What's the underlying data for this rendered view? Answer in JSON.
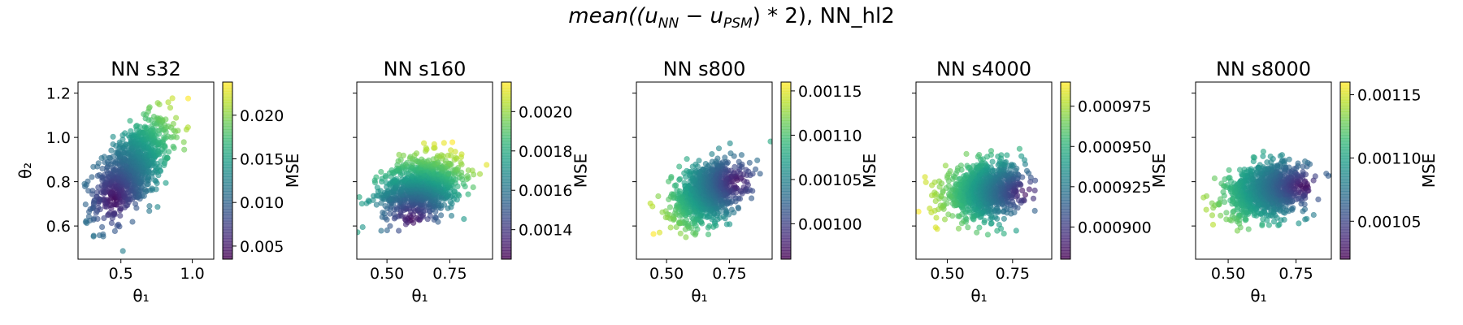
{
  "figure": {
    "suptitle_prefix": "mean((u",
    "sub_nn": "NN",
    "minus": " − u",
    "sub_psm": "PSM",
    "suptitle_suffix": ") * 2), NN_hl2"
  },
  "chart_data": [
    {
      "type": "scatter",
      "title": "NN s32",
      "xlabel": "θ₁",
      "ylabel": "θ₂",
      "xlim": [
        0.2,
        1.15
      ],
      "ylim": [
        0.45,
        1.25
      ],
      "xticks": [
        0.5,
        1.0
      ],
      "xtick_labels": [
        "0.5",
        "1.0"
      ],
      "yticks": [
        0.6,
        0.8,
        1.0,
        1.2
      ],
      "ytick_labels": [
        "0.6",
        "0.8",
        "1.0",
        "1.2"
      ],
      "point_cloud": {
        "center": [
          0.58,
          0.86
        ],
        "spread": [
          0.13,
          0.11
        ],
        "correlation": 0.6,
        "mse_minimum_at": [
          0.45,
          0.72
        ]
      },
      "colorbar": {
        "label": "MSE",
        "colormap": "viridis",
        "range": [
          0.0035,
          0.0238
        ],
        "ticks": [
          0.005,
          0.01,
          0.015,
          0.02
        ],
        "tick_labels": [
          "0.005",
          "0.010",
          "0.015",
          "0.020"
        ]
      }
    },
    {
      "type": "scatter",
      "title": "NN s160",
      "xlabel": "θ₁",
      "ylabel": "",
      "xlim": [
        0.38,
        0.92
      ],
      "ylim": [
        0.45,
        1.25
      ],
      "xticks": [
        0.5,
        0.75
      ],
      "xtick_labels": [
        "0.50",
        "0.75"
      ],
      "yticks": [
        0.6,
        0.8,
        1.0,
        1.2
      ],
      "ytick_labels": [
        "",
        "",
        "",
        ""
      ],
      "point_cloud": {
        "center": [
          0.64,
          0.78
        ],
        "spread": [
          0.08,
          0.07
        ],
        "correlation": 0.3,
        "mse_minimum_at": [
          0.6,
          0.63
        ]
      },
      "colorbar": {
        "label": "MSE",
        "colormap": "viridis",
        "range": [
          0.00125,
          0.00215
        ],
        "ticks": [
          0.0014,
          0.0016,
          0.0018,
          0.002
        ],
        "tick_labels": [
          "0.0014",
          "0.0016",
          "0.0018",
          "0.0020"
        ]
      }
    },
    {
      "type": "scatter",
      "title": "NN s800",
      "xlabel": "θ₁",
      "ylabel": "",
      "xlim": [
        0.38,
        0.92
      ],
      "ylim": [
        0.45,
        1.25
      ],
      "xticks": [
        0.5,
        0.75
      ],
      "xtick_labels": [
        "0.50",
        "0.75"
      ],
      "yticks": [
        0.6,
        0.8,
        1.0,
        1.2
      ],
      "ytick_labels": [
        "",
        "",
        "",
        ""
      ],
      "point_cloud": {
        "center": [
          0.66,
          0.75
        ],
        "spread": [
          0.07,
          0.07
        ],
        "correlation": 0.35,
        "mse_minimum_at": [
          0.78,
          0.8
        ]
      },
      "colorbar": {
        "label": "MSE",
        "colormap": "viridis",
        "range": [
          0.00096,
          0.00116
        ],
        "ticks": [
          0.001,
          0.00105,
          0.0011,
          0.00115
        ],
        "tick_labels": [
          "0.00100",
          "0.00105",
          "0.00110",
          "0.00115"
        ]
      }
    },
    {
      "type": "scatter",
      "title": "NN s4000",
      "xlabel": "θ₁",
      "ylabel": "",
      "xlim": [
        0.38,
        0.9
      ],
      "ylim": [
        0.45,
        1.25
      ],
      "xticks": [
        0.5,
        0.75
      ],
      "xtick_labels": [
        "0.50",
        "0.75"
      ],
      "yticks": [
        0.6,
        0.8,
        1.0,
        1.2
      ],
      "ytick_labels": [
        "",
        "",
        "",
        ""
      ],
      "point_cloud": {
        "center": [
          0.64,
          0.76
        ],
        "spread": [
          0.075,
          0.06
        ],
        "correlation": 0.2,
        "mse_minimum_at": [
          0.8,
          0.75
        ]
      },
      "colorbar": {
        "label": "MSE",
        "colormap": "viridis",
        "range": [
          0.00088,
          0.00099
        ],
        "ticks": [
          0.0009,
          0.000925,
          0.00095,
          0.000975
        ],
        "tick_labels": [
          "0.000900",
          "0.000925",
          "0.000950",
          "0.000975"
        ]
      }
    },
    {
      "type": "scatter",
      "title": "NN s8000",
      "xlabel": "θ₁",
      "ylabel": "",
      "xlim": [
        0.38,
        0.88
      ],
      "ylim": [
        0.45,
        1.25
      ],
      "xticks": [
        0.5,
        0.75
      ],
      "xtick_labels": [
        "0.50",
        "0.75"
      ],
      "yticks": [
        0.6,
        0.8,
        1.0,
        1.2
      ],
      "ytick_labels": [
        "",
        "",
        "",
        ""
      ],
      "point_cloud": {
        "center": [
          0.64,
          0.76
        ],
        "spread": [
          0.075,
          0.06
        ],
        "correlation": 0.25,
        "mse_minimum_at": [
          0.78,
          0.78
        ]
      },
      "colorbar": {
        "label": "MSE",
        "colormap": "viridis",
        "range": [
          0.00102,
          0.00116
        ],
        "ticks": [
          0.00105,
          0.0011,
          0.00115
        ],
        "tick_labels": [
          "0.00105",
          "0.00110",
          "0.00115"
        ]
      }
    }
  ]
}
